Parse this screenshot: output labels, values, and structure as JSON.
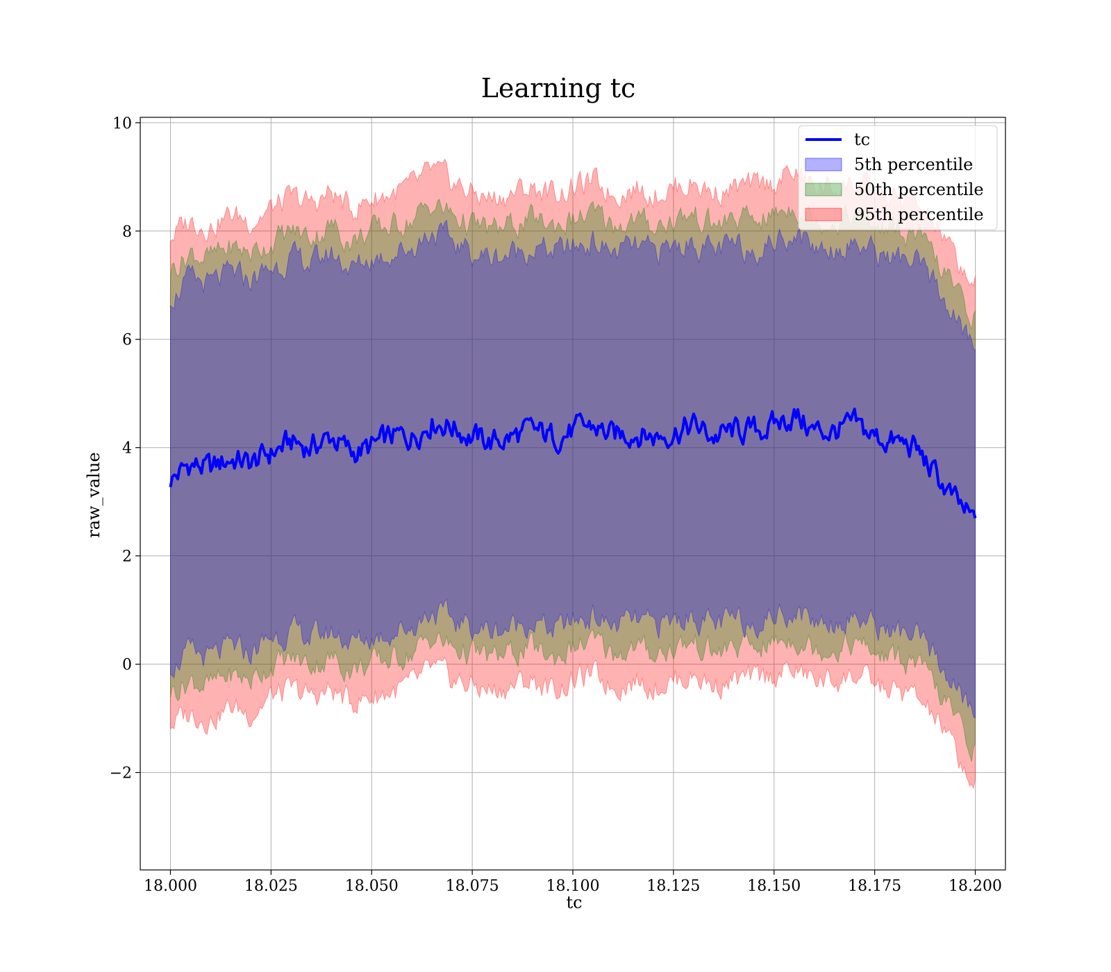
{
  "chart_data": {
    "type": "area",
    "title": "Learning tc",
    "xlabel": "tc",
    "ylabel": "raw_value",
    "xlim": [
      17.9925,
      18.2075
    ],
    "ylim": [
      -3.8,
      10.1
    ],
    "grid": true,
    "legend_placement": "top-right",
    "x_ticks": [
      18.0,
      18.025,
      18.05,
      18.075,
      18.1,
      18.125,
      18.15,
      18.175,
      18.2
    ],
    "x_tick_labels": [
      "18.000",
      "18.025",
      "18.050",
      "18.075",
      "18.100",
      "18.125",
      "18.150",
      "18.175",
      "18.200"
    ],
    "y_ticks": [
      -2,
      0,
      2,
      4,
      6,
      8,
      10
    ],
    "y_tick_labels": [
      "−2",
      "0",
      "2",
      "4",
      "6",
      "8",
      "10"
    ],
    "x": [
      18.0,
      18.005,
      18.01,
      18.015,
      18.02,
      18.025,
      18.03,
      18.035,
      18.04,
      18.045,
      18.05,
      18.055,
      18.06,
      18.065,
      18.07,
      18.075,
      18.08,
      18.085,
      18.09,
      18.095,
      18.1,
      18.105,
      18.11,
      18.115,
      18.12,
      18.125,
      18.13,
      18.135,
      18.14,
      18.145,
      18.15,
      18.155,
      18.16,
      18.165,
      18.17,
      18.175,
      18.18,
      18.185,
      18.19,
      18.195,
      18.2
    ],
    "series": [
      {
        "name": "tc",
        "type": "line",
        "color": "#0000ff",
        "values": [
          3.4,
          3.7,
          3.6,
          3.8,
          3.7,
          3.9,
          4.1,
          4.0,
          4.2,
          3.9,
          4.0,
          4.2,
          4.2,
          4.5,
          4.4,
          4.2,
          4.1,
          4.2,
          4.3,
          4.2,
          4.3,
          4.4,
          4.2,
          4.3,
          4.2,
          4.3,
          4.4,
          4.2,
          4.3,
          4.3,
          4.4,
          4.6,
          4.3,
          4.3,
          4.4,
          4.2,
          4.1,
          4.0,
          3.5,
          3.0,
          2.6
        ]
      },
      {
        "name": "5th percentile",
        "type": "band",
        "color": "#0000ff",
        "lower": [
          0.0,
          0.2,
          0.1,
          0.3,
          0.2,
          0.5,
          0.6,
          0.5,
          0.6,
          0.4,
          0.5,
          0.6,
          0.7,
          1.0,
          0.8,
          0.7,
          0.6,
          0.7,
          0.8,
          0.6,
          0.8,
          0.9,
          0.7,
          0.8,
          0.7,
          0.8,
          0.9,
          0.7,
          0.8,
          0.8,
          0.9,
          1.0,
          0.8,
          0.8,
          0.9,
          0.7,
          0.6,
          0.5,
          0.1,
          -0.4,
          -1.0
        ],
        "upper": [
          6.8,
          7.1,
          7.0,
          7.2,
          7.1,
          7.3,
          7.5,
          7.4,
          7.6,
          7.3,
          7.5,
          7.6,
          7.7,
          8.0,
          7.8,
          7.6,
          7.5,
          7.6,
          7.7,
          7.6,
          7.7,
          7.8,
          7.6,
          7.7,
          7.6,
          7.7,
          7.8,
          7.6,
          7.7,
          7.7,
          7.8,
          8.0,
          7.7,
          7.7,
          7.8,
          7.6,
          7.5,
          7.4,
          7.0,
          6.4,
          5.8
        ]
      },
      {
        "name": "50th percentile",
        "type": "band",
        "color": "#008000",
        "lower": [
          -0.5,
          -0.3,
          -0.4,
          -0.2,
          -0.3,
          0.0,
          0.1,
          0.0,
          0.1,
          -0.1,
          0.0,
          0.1,
          0.2,
          0.5,
          0.3,
          0.2,
          0.1,
          0.2,
          0.3,
          0.1,
          0.3,
          0.4,
          0.2,
          0.3,
          0.2,
          0.3,
          0.4,
          0.2,
          0.3,
          0.3,
          0.4,
          0.5,
          0.3,
          0.3,
          0.4,
          0.2,
          0.1,
          0.0,
          -0.4,
          -1.0,
          -1.6
        ],
        "upper": [
          7.3,
          7.6,
          7.5,
          7.7,
          7.6,
          7.8,
          8.0,
          7.9,
          8.1,
          7.8,
          8.0,
          8.1,
          8.2,
          8.5,
          8.3,
          8.1,
          8.0,
          8.1,
          8.2,
          8.1,
          8.2,
          8.3,
          8.1,
          8.2,
          8.1,
          8.2,
          8.3,
          8.1,
          8.2,
          8.2,
          8.3,
          8.5,
          8.2,
          8.2,
          8.3,
          8.1,
          8.0,
          7.9,
          7.5,
          6.9,
          6.4
        ]
      },
      {
        "name": "95th percentile",
        "type": "band",
        "color": "#ff0000",
        "lower": [
          -1.1,
          -0.9,
          -1.0,
          -0.8,
          -0.9,
          -0.6,
          -0.5,
          -0.6,
          -0.5,
          -0.7,
          -0.6,
          -0.5,
          -0.4,
          -0.1,
          -0.3,
          -0.4,
          -0.5,
          -0.4,
          -0.3,
          -0.5,
          -0.3,
          -0.2,
          -0.4,
          -0.3,
          -0.4,
          -0.3,
          -0.2,
          -0.4,
          -0.3,
          -0.3,
          -0.2,
          -0.1,
          -0.3,
          -0.3,
          -0.2,
          -0.4,
          -0.5,
          -0.6,
          -1.0,
          -1.6,
          -2.3
        ],
        "upper": [
          7.9,
          8.2,
          8.1,
          8.3,
          8.2,
          8.4,
          8.6,
          8.5,
          8.7,
          8.4,
          8.6,
          8.7,
          8.8,
          9.1,
          8.9,
          8.7,
          8.6,
          8.7,
          8.8,
          8.7,
          8.8,
          8.9,
          8.7,
          8.8,
          8.7,
          8.8,
          8.9,
          8.7,
          8.8,
          8.8,
          8.9,
          9.1,
          8.8,
          8.8,
          8.9,
          8.7,
          8.6,
          8.5,
          8.1,
          7.5,
          7.0
        ]
      }
    ]
  }
}
